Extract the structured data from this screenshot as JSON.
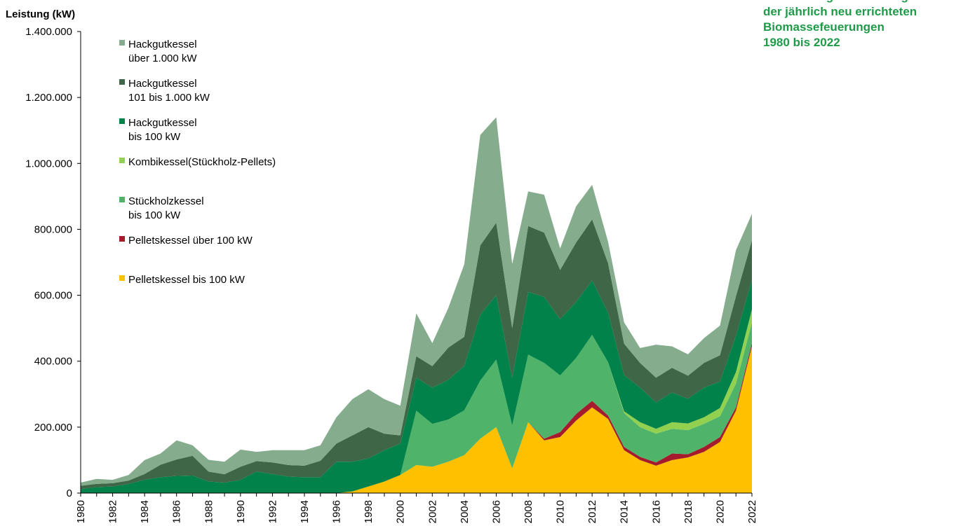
{
  "chart_data": {
    "type": "area",
    "stacked": true,
    "title_lines": [
      "Entwicklung der Leistung",
      "der jährlich neu errichteten",
      "Biomassefeuerungen",
      "1980 bis 2022"
    ],
    "ylabel": "Leistung (kW)",
    "ylim": [
      0,
      1400000
    ],
    "yticks": [
      0,
      200000,
      400000,
      600000,
      800000,
      1000000,
      1200000,
      1400000
    ],
    "ytick_labels": [
      "0",
      "200.000",
      "400.000",
      "600.000",
      "800.000",
      "1.000.000",
      "1.200.000",
      "1.400.000"
    ],
    "grid": false,
    "legend_position": "top-left",
    "x": [
      1980,
      1981,
      1982,
      1983,
      1984,
      1985,
      1986,
      1987,
      1988,
      1989,
      1990,
      1991,
      1992,
      1993,
      1994,
      1995,
      1996,
      1997,
      1998,
      1999,
      2000,
      2001,
      2002,
      2003,
      2004,
      2005,
      2006,
      2007,
      2008,
      2009,
      2010,
      2011,
      2012,
      2013,
      2014,
      2015,
      2016,
      2017,
      2018,
      2019,
      2020,
      2021,
      2022
    ],
    "xtick_labels": [
      "1980",
      "1982",
      "1984",
      "1986",
      "1988",
      "1990",
      "1992",
      "1994",
      "1996",
      "1998",
      "2000",
      "2002",
      "2004",
      "2006",
      "2008",
      "2010",
      "2012",
      "2014",
      "2016",
      "2018",
      "2020",
      "2022"
    ],
    "series": [
      {
        "name": "Pelletskessel bis 100 kW",
        "color": "#ffc000",
        "values": [
          0,
          0,
          0,
          0,
          0,
          0,
          0,
          0,
          0,
          0,
          0,
          0,
          0,
          0,
          0,
          0,
          0,
          5000,
          20000,
          35000,
          55000,
          85000,
          80000,
          95000,
          115000,
          165000,
          200000,
          75000,
          215000,
          160000,
          170000,
          220000,
          260000,
          225000,
          130000,
          100000,
          83000,
          100000,
          108000,
          125000,
          155000,
          250000,
          445000
        ]
      },
      {
        "name": "Pelletskessel über 100 kW",
        "color": "#a31b2c",
        "values": [
          0,
          0,
          0,
          0,
          0,
          0,
          0,
          0,
          0,
          0,
          0,
          0,
          0,
          0,
          0,
          0,
          0,
          0,
          0,
          0,
          0,
          0,
          0,
          0,
          0,
          0,
          0,
          0,
          0,
          5000,
          15000,
          20000,
          20000,
          10000,
          10000,
          10000,
          10000,
          20000,
          10000,
          15000,
          15000,
          10000,
          10000
        ]
      },
      {
        "name": "Stückholzkessel\nbis 100 kW",
        "color": "#4fb46a",
        "values": [
          0,
          0,
          0,
          0,
          0,
          0,
          0,
          0,
          0,
          0,
          0,
          0,
          0,
          0,
          0,
          0,
          0,
          0,
          0,
          0,
          0,
          165000,
          130000,
          128000,
          136000,
          176000,
          205000,
          130000,
          205000,
          230000,
          172000,
          170000,
          200000,
          162000,
          103000,
          90000,
          87000,
          75000,
          73000,
          70000,
          63000,
          72000,
          62000
        ]
      },
      {
        "name": "Kombikessel(Stückholz-Pellets)",
        "color": "#92d050",
        "values": [
          0,
          0,
          0,
          0,
          0,
          0,
          0,
          0,
          0,
          0,
          0,
          0,
          0,
          0,
          0,
          0,
          0,
          0,
          0,
          0,
          0,
          0,
          0,
          0,
          0,
          0,
          0,
          0,
          0,
          0,
          0,
          0,
          0,
          0,
          5000,
          15000,
          15000,
          20000,
          20000,
          20000,
          25000,
          35000,
          40000
        ]
      },
      {
        "name": "Hackgutkessel\nbis 100 kW",
        "color": "#00824a",
        "values": [
          12000,
          18000,
          20000,
          28000,
          40000,
          48000,
          52000,
          53000,
          35000,
          32000,
          40000,
          65000,
          58000,
          50000,
          48000,
          48000,
          95000,
          90000,
          85000,
          95000,
          95000,
          100000,
          110000,
          120000,
          135000,
          200000,
          195000,
          145000,
          190000,
          200000,
          170000,
          170000,
          165000,
          150000,
          110000,
          105000,
          80000,
          90000,
          75000,
          90000,
          80000,
          110000,
          90000
        ]
      },
      {
        "name": "Hackgutkessel\n101 bis 1.000 kW",
        "color": "#3f6647",
        "values": [
          10000,
          10000,
          10000,
          10000,
          18000,
          38000,
          50000,
          60000,
          30000,
          25000,
          40000,
          32000,
          35000,
          35000,
          35000,
          50000,
          55000,
          80000,
          95000,
          50000,
          25000,
          65000,
          65000,
          98000,
          88000,
          210000,
          220000,
          150000,
          200000,
          195000,
          150000,
          180000,
          185000,
          150000,
          95000,
          75000,
          75000,
          75000,
          70000,
          75000,
          80000,
          120000,
          120000
        ]
      },
      {
        "name": "Hackgutkessel\nüber 1.000 kW",
        "color": "#85ac8d",
        "values": [
          10000,
          15000,
          10000,
          17000,
          42000,
          34000,
          58000,
          32000,
          36000,
          38000,
          52000,
          28000,
          37000,
          45000,
          47000,
          47000,
          80000,
          110000,
          115000,
          105000,
          90000,
          130000,
          70000,
          120000,
          220000,
          335000,
          320000,
          195000,
          105000,
          115000,
          65000,
          110000,
          105000,
          65000,
          65000,
          45000,
          100000,
          65000,
          65000,
          75000,
          90000,
          140000,
          80000
        ]
      }
    ]
  }
}
